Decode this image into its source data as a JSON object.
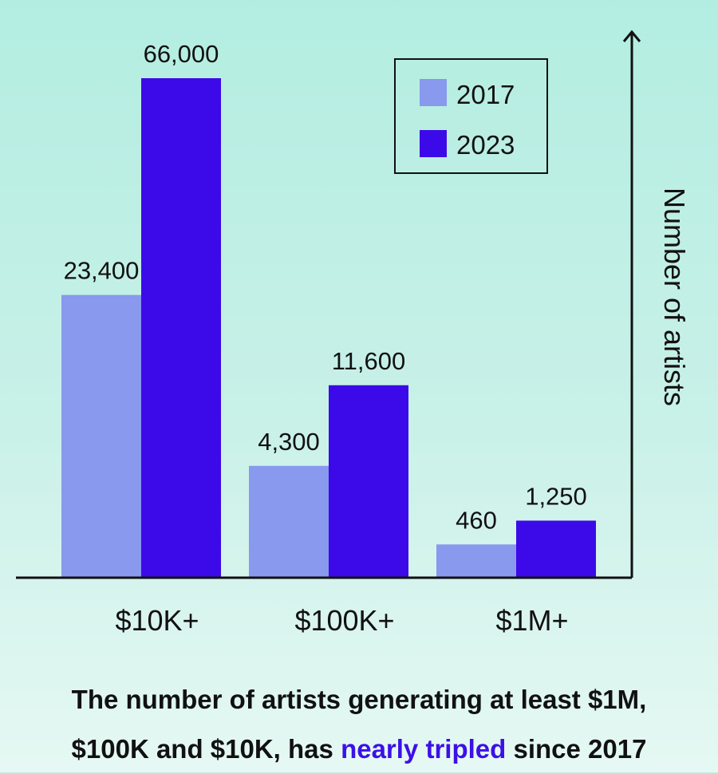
{
  "chart_data": {
    "type": "bar",
    "categories": [
      "$10K+",
      "$100K+",
      "$1M+"
    ],
    "series": [
      {
        "name": "2017",
        "values": [
          23400,
          4300,
          460
        ],
        "labels": [
          "23,400",
          "4,300",
          "460"
        ],
        "color": "#8899ee"
      },
      {
        "name": "2023",
        "values": [
          66000,
          11600,
          1250
        ],
        "labels": [
          "66,000",
          "11,600",
          "1,250"
        ],
        "color": "#3c0ae8"
      }
    ],
    "ylabel": "Number of artists",
    "y_axis_side": "right",
    "y_scale": "non-linear",
    "legend_position": "top-right",
    "grid": false
  },
  "caption": {
    "line1": "The number of artists generating at least $1M,",
    "line2_start": "$100K and $10K, has ",
    "line2_highlight": "nearly tripled",
    "line2_end": " since 2017",
    "highlight_color": "#3c10e8"
  }
}
